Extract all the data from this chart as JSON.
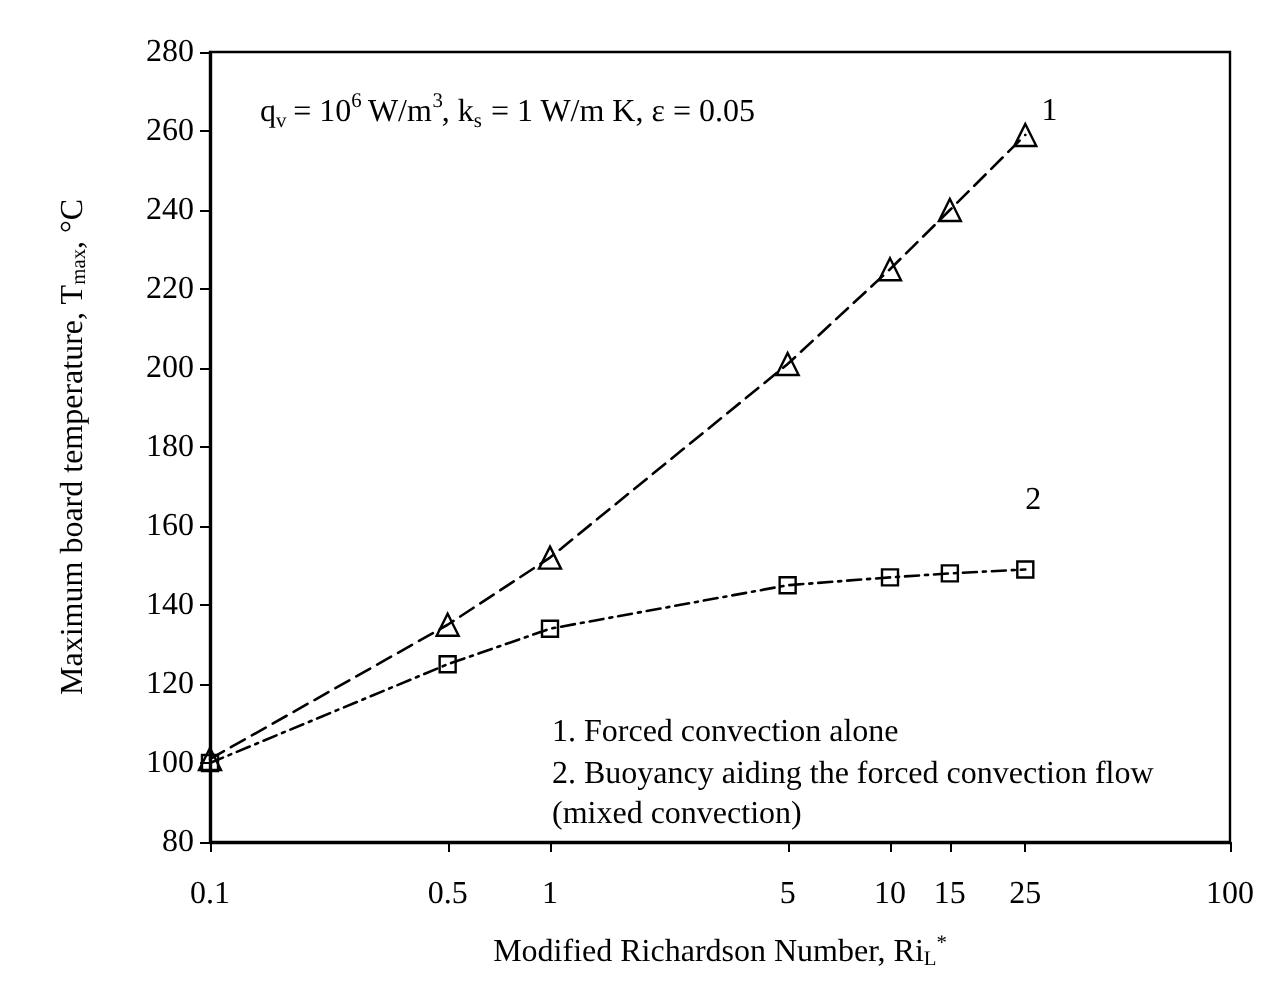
{
  "chart_data": {
    "type": "line",
    "xlabel": "Modified Richardson Number, Ri$_{L}$$^{*}$",
    "ylabel": "Maximum board temperature, T$_{max}$, °C",
    "x": [
      0.1,
      0.5,
      1,
      5,
      10,
      15,
      25
    ],
    "series": [
      {
        "name": "1",
        "color": "#000000",
        "marker": "triangle",
        "line_style": "dashed",
        "values": [
          101,
          135,
          152,
          201,
          225,
          240,
          259
        ]
      },
      {
        "name": "2",
        "color": "#000000",
        "marker": "square",
        "line_style": "dashdot",
        "values": [
          100,
          125,
          134,
          145,
          147,
          148,
          149
        ]
      }
    ],
    "log": "x",
    "xlim": [
      0.1,
      100
    ],
    "xticks": [
      0.1,
      0.5,
      1,
      5,
      10,
      15,
      25,
      100
    ],
    "ylim": [
      80,
      280
    ],
    "yticks": [
      80,
      100,
      120,
      140,
      160,
      180,
      200,
      220,
      240,
      260,
      280
    ],
    "grid": false,
    "legend": false,
    "annotations": [
      "q$_{v}$ = 10$^{6}$ W/m$^{3}$, k$_{s}$ = 1 W/m K, ε = 0.05",
      "1. Forced convection alone",
      "2. Buoyancy aiding the forced convection flow (mixed convection)"
    ]
  }
}
